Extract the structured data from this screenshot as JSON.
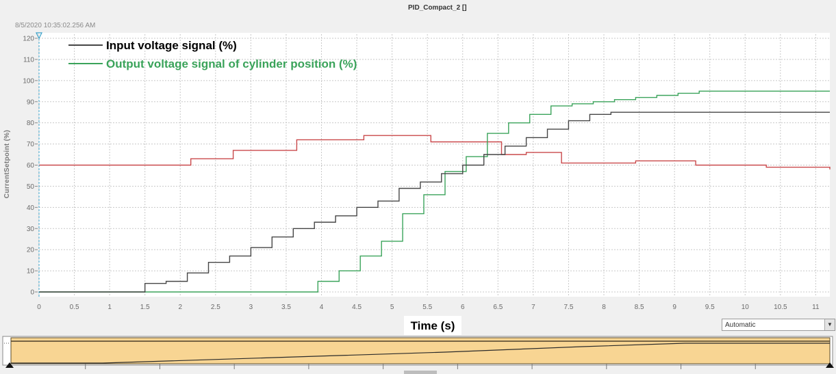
{
  "header": {
    "title": "PID_Compact_2 []",
    "timestamp": "8/5/2020 10:35:02.256 AM"
  },
  "controls": {
    "mode_value": "Automatic",
    "mode_arrow_icon": "dropdown-arrow-icon"
  },
  "colors": {
    "input": "#454545",
    "output": "#3aa35a",
    "setpoint": "#c9484a",
    "overview_fill": "#f8d593",
    "grid": "#c8c8c8"
  },
  "chart_data": {
    "type": "line",
    "title": "PID_Compact_2 []",
    "xlabel": "Time (s)",
    "ylabel": "CurrentSetpoint (%)",
    "xlim": [
      0,
      11.2
    ],
    "ylim": [
      0,
      120
    ],
    "x_ticks": [
      "0",
      "0.5",
      "1",
      "1.5",
      "2",
      "2.5",
      "3",
      "3.5",
      "4",
      "4.5",
      "5",
      "5.5",
      "6",
      "6.5",
      "7",
      "7.5",
      "8",
      "8.5",
      "9",
      "9.5",
      "10",
      "10.5",
      "11"
    ],
    "y_ticks": [
      "0",
      "10",
      "20",
      "30",
      "40",
      "50",
      "60",
      "70",
      "80",
      "90",
      "100",
      "110",
      "120"
    ],
    "grid": true,
    "legend_position": "top-left",
    "series": [
      {
        "name": "Input voltage signal (%)",
        "color": "#454545",
        "step": true,
        "x": [
          0,
          1.5,
          1.8,
          2.1,
          2.4,
          2.7,
          3.0,
          3.3,
          3.6,
          3.9,
          4.2,
          4.5,
          4.8,
          5.1,
          5.4,
          5.7,
          6.0,
          6.3,
          6.6,
          6.9,
          7.2,
          7.5,
          7.8,
          8.1,
          8.4,
          11.2
        ],
        "y": [
          0,
          4,
          5,
          9,
          14,
          17,
          21,
          26,
          30,
          33,
          36,
          40,
          43,
          49,
          52,
          56,
          60,
          65,
          69,
          73,
          77,
          81,
          84,
          85,
          85,
          85
        ]
      },
      {
        "name": "Output voltage signal of cylinder position (%)",
        "color": "#3aa35a",
        "step": true,
        "x": [
          0,
          3.95,
          4.25,
          4.55,
          4.85,
          5.15,
          5.45,
          5.75,
          6.05,
          6.35,
          6.65,
          6.95,
          7.25,
          7.55,
          7.85,
          8.15,
          8.45,
          8.75,
          9.05,
          9.35,
          11.2
        ],
        "y": [
          0,
          5,
          10,
          17,
          24,
          37,
          46,
          57,
          64,
          75,
          80,
          84,
          88,
          89,
          90,
          91,
          92,
          93,
          94,
          95,
          95
        ]
      },
      {
        "name": "",
        "color": "#c9484a",
        "step": true,
        "x": [
          0,
          2.15,
          2.75,
          3.65,
          4.6,
          5.55,
          6.55,
          6.9,
          7.4,
          8.45,
          9.3,
          10.3,
          11.2
        ],
        "y": [
          60,
          63,
          67,
          72,
          74,
          71,
          65,
          66,
          61,
          62,
          60,
          59,
          58
        ]
      }
    ]
  }
}
